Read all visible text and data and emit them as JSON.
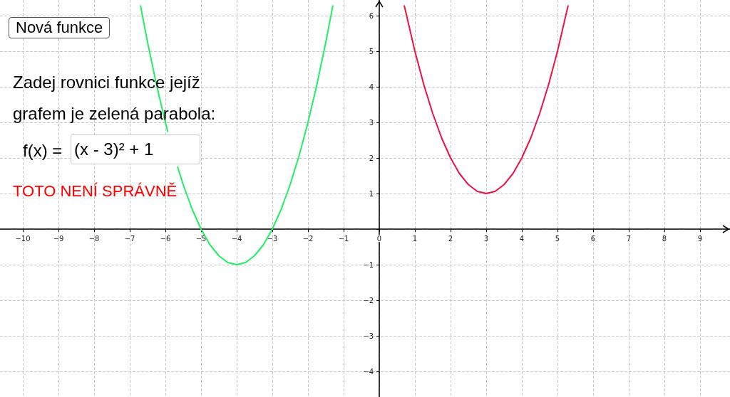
{
  "chart_data": {
    "type": "line",
    "marker": "none",
    "grid": true,
    "line_style": "solid",
    "xlim": [
      -10.64,
      9.84
    ],
    "ylim": [
      -4.72,
      6.44
    ],
    "xticks": [
      {
        "value": -10,
        "label": "−10"
      },
      {
        "value": -9,
        "label": "−9"
      },
      {
        "value": -8,
        "label": "−8"
      },
      {
        "value": -7,
        "label": "−7"
      },
      {
        "value": -6,
        "label": "−6"
      },
      {
        "value": -5,
        "label": "−5"
      },
      {
        "value": -4,
        "label": "−4"
      },
      {
        "value": -3,
        "label": "−3"
      },
      {
        "value": -2,
        "label": "−2"
      },
      {
        "value": -1,
        "label": "−1"
      },
      0,
      1,
      2,
      3,
      4,
      5,
      6,
      7,
      8,
      9
    ],
    "yticks": [
      {
        "value": -4,
        "label": "−4"
      },
      {
        "value": -3,
        "label": "−3"
      },
      {
        "value": -2,
        "label": "−2"
      },
      {
        "value": -1,
        "label": "−1"
      },
      {
        "value": 0,
        "label": null
      },
      1,
      2,
      3,
      4,
      5,
      6
    ],
    "series": [
      {
        "color": "#22ee66",
        "x": [
          -6.7,
          -6.5,
          -6.25,
          -6,
          -5.93,
          -5.8,
          -5.66,
          -5.5,
          -5.25,
          -5,
          -4.75,
          -4.5,
          -4.25,
          -4,
          -3.75,
          -3.5,
          -3.25,
          -3,
          -2.75,
          -2.5,
          -2.25,
          -2,
          -1.75,
          -1.5,
          -1.3
        ],
        "values": [
          6.29,
          5.25,
          4.06,
          3,
          2.73,
          null,
          1.76,
          1.25,
          0.56,
          0,
          -0.44,
          -0.75,
          -0.94,
          -1,
          -0.94,
          -0.75,
          -0.44,
          0,
          0.56,
          1.25,
          2.06,
          3,
          4.06,
          5.25,
          6.29
        ]
      },
      {
        "color": "#ee1144",
        "x": [
          0.7,
          1,
          1.25,
          1.5,
          1.75,
          2,
          2.25,
          2.5,
          2.75,
          3,
          3.25,
          3.5,
          3.75,
          4,
          4.25,
          4.5,
          4.75,
          5,
          5.3
        ],
        "values": [
          6.29,
          5,
          4.06,
          3.25,
          2.56,
          2,
          1.56,
          1.25,
          1.06,
          1,
          1.06,
          1.25,
          1.56,
          2,
          2.56,
          3.25,
          4.06,
          5,
          6.29
        ]
      }
    ],
    "annotations": [
      "Nová funkce",
      "Zadej rovnici funkce jejíž\ngrafem je zelená parabola:",
      "f(x) =",
      "(x - 3)² + 1",
      "TOTO NENÍ SPRÁVNĚ"
    ]
  }
}
